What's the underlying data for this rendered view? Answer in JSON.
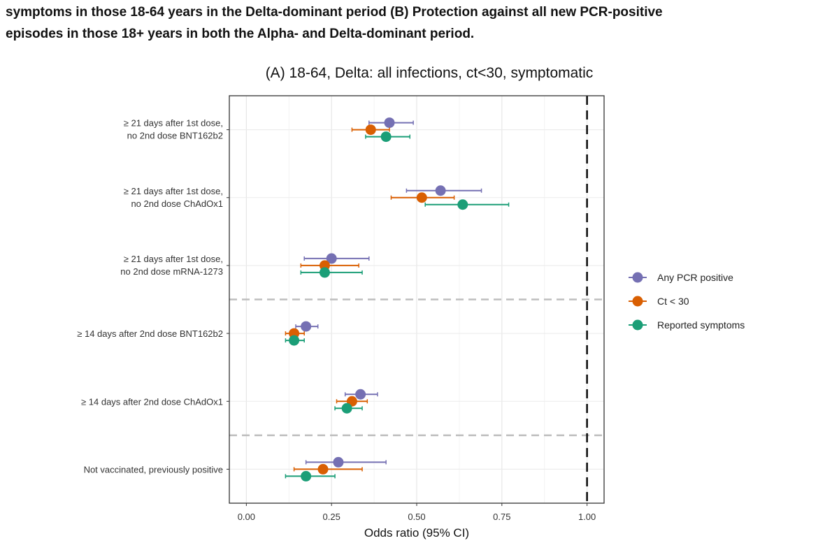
{
  "caption": {
    "line1": "symptoms in those 18-64 years in the Delta-dominant period (B) Protection against all new PCR-positive",
    "line2": "episodes in those 18+ years in both the Alpha- and Delta-dominant period."
  },
  "chart_data": {
    "type": "scatter",
    "subtype": "forest-plot",
    "title": "(A) 18-64, Delta: all infections, ct<30, symptomatic",
    "xlabel": "Odds ratio (95% CI)",
    "ylabel": "",
    "xlim": [
      -0.05,
      1.05
    ],
    "xticks": [
      0.0,
      0.25,
      0.5,
      0.75,
      1.0
    ],
    "xtick_labels": [
      "0.00",
      "0.25",
      "0.50",
      "0.75",
      "1.00"
    ],
    "reference_line": 1.0,
    "grid": true,
    "legend_position": "right",
    "group_separators_after": [
      3,
      5
    ],
    "categories": [
      [
        "≥ 21 days after 1st dose,",
        "no 2nd dose BNT162b2"
      ],
      [
        "≥ 21 days after 1st dose,",
        "no 2nd dose ChAdOx1"
      ],
      [
        "≥ 21 days after 1st dose,",
        "no 2nd dose mRNA-1273"
      ],
      [
        "≥ 14 days after 2nd dose BNT162b2"
      ],
      [
        "≥ 14 days after 2nd dose ChAdOx1"
      ],
      [
        "Not vaccinated, previously positive"
      ]
    ],
    "series": [
      {
        "name": "Any PCR positive",
        "color": "#7570b3",
        "estimate": [
          0.42,
          0.57,
          0.25,
          0.175,
          0.335,
          0.27
        ],
        "lower": [
          0.36,
          0.47,
          0.17,
          0.145,
          0.29,
          0.175
        ],
        "upper": [
          0.49,
          0.69,
          0.36,
          0.21,
          0.385,
          0.41
        ]
      },
      {
        "name": "Ct < 30",
        "color": "#d95f02",
        "estimate": [
          0.365,
          0.515,
          0.23,
          0.14,
          0.31,
          0.225
        ],
        "lower": [
          0.31,
          0.425,
          0.16,
          0.115,
          0.265,
          0.14
        ],
        "upper": [
          0.42,
          0.61,
          0.33,
          0.17,
          0.355,
          0.34
        ]
      },
      {
        "name": "Reported symptoms",
        "color": "#1b9e77",
        "estimate": [
          0.41,
          0.635,
          0.23,
          0.14,
          0.295,
          0.175
        ],
        "lower": [
          0.35,
          0.525,
          0.16,
          0.115,
          0.26,
          0.115
        ],
        "upper": [
          0.48,
          0.77,
          0.34,
          0.17,
          0.34,
          0.26
        ]
      }
    ]
  }
}
